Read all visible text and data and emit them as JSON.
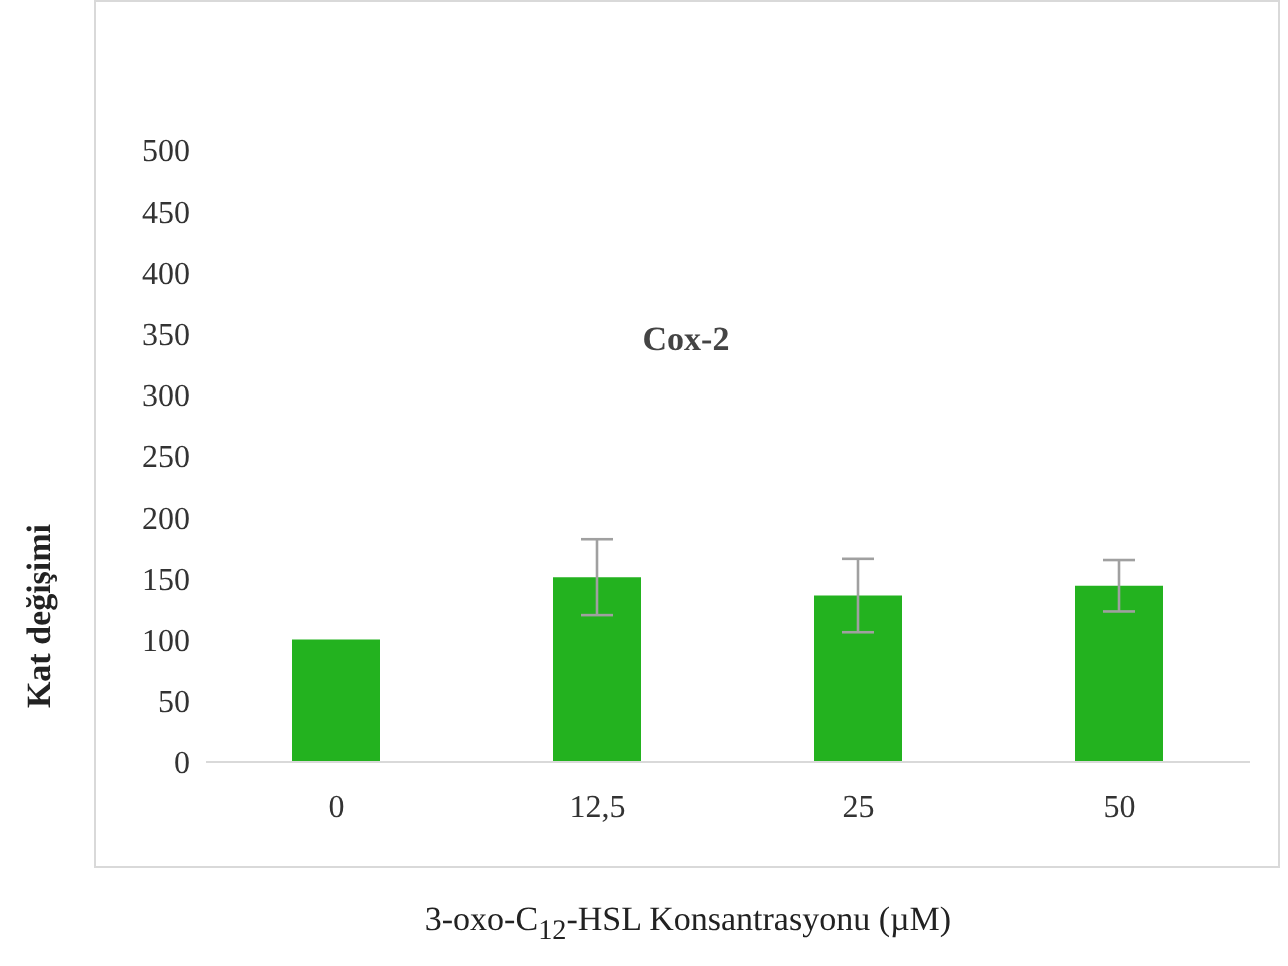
{
  "chart_data": {
    "type": "bar",
    "title": "Cox-2",
    "xlabel": "3-oxo-C$_{12}$-HSL Konsantrasyonu (µM)",
    "ylabel": "Kat değişimi",
    "categories": [
      "0",
      "12,5",
      "25",
      "50"
    ],
    "values": [
      100,
      151,
      136,
      144
    ],
    "errors": [
      0,
      31,
      30,
      21
    ],
    "color": "#23b21f",
    "ylim": [
      0,
      500
    ],
    "yticks": [
      0,
      50,
      100,
      150,
      200,
      250,
      300,
      350,
      400,
      450,
      500
    ]
  }
}
